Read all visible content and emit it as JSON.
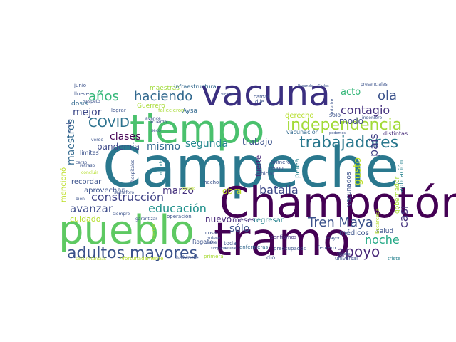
{
  "word_cloud": {
    "words": [
      {
        "text": "Campeche",
        "color": "#2a788e"
      },
      {
        "text": "Champotón",
        "color": "#440154"
      },
      {
        "text": "tramo",
        "color": "#440154"
      },
      {
        "text": "pueblo",
        "color": "#5ec962"
      },
      {
        "text": "tiempo",
        "color": "#4ac16d"
      },
      {
        "text": "vacuna",
        "color": "#3b2f80"
      },
      {
        "text": "adultos mayores",
        "color": "#3b528b"
      },
      {
        "text": "independencia",
        "color": "#a2da37"
      },
      {
        "text": "trabajadores",
        "color": "#2a788e"
      },
      {
        "text": "apoyo",
        "color": "#482878"
      },
      {
        "text": "Tren Maya",
        "color": "#3b528b"
      },
      {
        "text": "COVID",
        "color": "#2c728e"
      },
      {
        "text": "haciendo",
        "color": "#31688e"
      },
      {
        "text": "años",
        "color": "#35b779"
      },
      {
        "text": "ola",
        "color": "#3b528b"
      },
      {
        "text": "contagio",
        "color": "#46327e"
      },
      {
        "text": "construcción",
        "color": "#414487"
      },
      {
        "text": "educación",
        "color": "#21918c"
      },
      {
        "text": "batalla",
        "color": "#3e4989"
      },
      {
        "text": "noche",
        "color": "#22a884"
      },
      {
        "text": "país",
        "color": "#424086"
      },
      {
        "text": "casi",
        "color": "#46337f"
      },
      {
        "text": "sólo",
        "color": "#3b528b"
      },
      {
        "text": "avanzar",
        "color": "#3e4c8a"
      },
      {
        "text": "marzo",
        "color": "#46327e"
      },
      {
        "text": "mejor",
        "color": "#3e4989"
      },
      {
        "text": "maestros",
        "color": "#31688e"
      },
      {
        "text": "segunda",
        "color": "#23888e"
      },
      {
        "text": "clases",
        "color": "#440154"
      },
      {
        "text": "pandemia",
        "color": "#3e4989"
      },
      {
        "text": "mismo",
        "color": "#31688e"
      },
      {
        "text": "trabajo",
        "color": "#3b528b"
      },
      {
        "text": "gusto",
        "color": "#bddf26"
      },
      {
        "text": "acto",
        "color": "#35b779"
      },
      {
        "text": "modo",
        "color": "#3e4989"
      },
      {
        "text": "obra",
        "color": "#bddf26"
      },
      {
        "text": "nuevo",
        "color": "#482878"
      },
      {
        "text": "aprovechar",
        "color": "#3b528b"
      },
      {
        "text": "recordar",
        "color": "#3b528b"
      },
      {
        "text": "cuidado",
        "color": "#b5de2b"
      },
      {
        "text": "mencionó",
        "color": "#bddf26"
      },
      {
        "text": "derecho",
        "color": "#b5de2b"
      },
      {
        "text": "maestras",
        "color": "#a0da39"
      },
      {
        "text": "infraestructura",
        "color": "#31688e"
      },
      {
        "text": "dosis",
        "color": "#31688e"
      },
      {
        "text": "Guerrero",
        "color": "#a8db34"
      },
      {
        "text": "Aysa",
        "color": "#31688e"
      },
      {
        "text": "vida",
        "color": "#3b528b"
      },
      {
        "text": "meses",
        "color": "#46327e"
      },
      {
        "text": "regresar",
        "color": "#26828e"
      },
      {
        "text": "médicos",
        "color": "#3b528b"
      },
      {
        "text": "salud",
        "color": "#3b528b"
      },
      {
        "text": "vacunados",
        "color": "#3b528b"
      },
      {
        "text": "gobernador",
        "color": "#a8db34"
      },
      {
        "text": "aplicación",
        "color": "#26828e"
      },
      {
        "text": "fuerte",
        "color": "#482878"
      },
      {
        "text": "pelea",
        "color": "#26828e"
      },
      {
        "text": "distintas",
        "color": "#472c7a"
      },
      {
        "text": "vacunación",
        "color": "#31688e"
      },
      {
        "text": "solo",
        "color": "#3b528b"
      },
      {
        "text": "Rogelio",
        "color": "#3b528b"
      },
      {
        "text": "toda",
        "color": "#3b528b"
      },
      {
        "text": "dio",
        "color": "#3b528b"
      },
      {
        "text": "hablarle",
        "color": "#3b528b"
      },
      {
        "text": "primera",
        "color": "#a8db34"
      },
      {
        "text": "enfermeras",
        "color": "#31688e"
      },
      {
        "text": "confiarnos",
        "color": "#46327e"
      },
      {
        "text": "febrero",
        "color": "#3b528b"
      },
      {
        "text": "preocupados",
        "color": "#3b528b"
      },
      {
        "text": "universal",
        "color": "#3b528b"
      },
      {
        "text": "triste",
        "color": "#26828e"
      },
      {
        "text": "junio",
        "color": "#3b528b"
      },
      {
        "text": "llueve",
        "color": "#3b528b"
      },
      {
        "text": "respeto",
        "color": "#3b528b"
      },
      {
        "text": "lograr",
        "color": "#3b528b"
      },
      {
        "text": "fallecieron",
        "color": "#a8db34"
      },
      {
        "text": "avance",
        "color": "#3b528b"
      },
      {
        "text": "acuerdo",
        "color": "#3b528b"
      },
      {
        "text": "seco",
        "color": "#3b528b"
      },
      {
        "text": "dije",
        "color": "#3b528b"
      },
      {
        "text": "camas",
        "color": "#3b528b"
      },
      {
        "text": "limites",
        "color": "#3b528b"
      },
      {
        "text": "retraso",
        "color": "#3b528b"
      },
      {
        "text": "concluir",
        "color": "#b5de2b"
      },
      {
        "text": "carso",
        "color": "#3b528b"
      },
      {
        "text": "bien",
        "color": "#3b528b"
      },
      {
        "text": "operación",
        "color": "#3b528b"
      },
      {
        "text": "ciudad",
        "color": "#b5de2b"
      },
      {
        "text": "siempre",
        "color": "#3b528b"
      },
      {
        "text": "garantizar",
        "color": "#3b528b"
      },
      {
        "text": "Afortunadamente",
        "color": "#b5de2b"
      },
      {
        "text": "circunstancias",
        "color": "#b5de2b"
      },
      {
        "text": "hospitales",
        "color": "#3b528b"
      },
      {
        "text": "mundo",
        "color": "#26828e"
      },
      {
        "text": "semáforo",
        "color": "#3b528b"
      },
      {
        "text": "cosa",
        "color": "#3b528b"
      },
      {
        "text": "quiere",
        "color": "#3b528b"
      },
      {
        "text": "viene",
        "color": "#3b528b"
      },
      {
        "text": "verde",
        "color": "#3b528b"
      },
      {
        "text": "hecho",
        "color": "#3b528b"
      },
      {
        "text": "iniciar",
        "color": "#3b528b"
      },
      {
        "text": "vengo",
        "color": "#3b528b"
      },
      {
        "text": "primero",
        "color": "#3b528b"
      },
      {
        "text": "Escárcega",
        "color": "#b5de2b"
      },
      {
        "text": "ingeniero",
        "color": "#3b528b"
      },
      {
        "text": "anterior",
        "color": "#3b528b"
      },
      {
        "text": "presenciales",
        "color": "#3b528b"
      },
      {
        "text": "podemos",
        "color": "#3b528b"
      },
      {
        "text": "Vicente",
        "color": "#3b528b"
      },
      {
        "text": "Pasando",
        "color": "#3b528b"
      },
      {
        "text": "Carlos",
        "color": "#3b528b"
      },
      {
        "text": "pasado",
        "color": "#b5de2b"
      },
      {
        "text": "mayor",
        "color": "#3b528b"
      },
      {
        "text": "posible",
        "color": "#3b528b"
      },
      {
        "text": "simpatía",
        "color": "#3b528b"
      },
      {
        "text": "buena",
        "color": "#3b528b"
      }
    ]
  }
}
